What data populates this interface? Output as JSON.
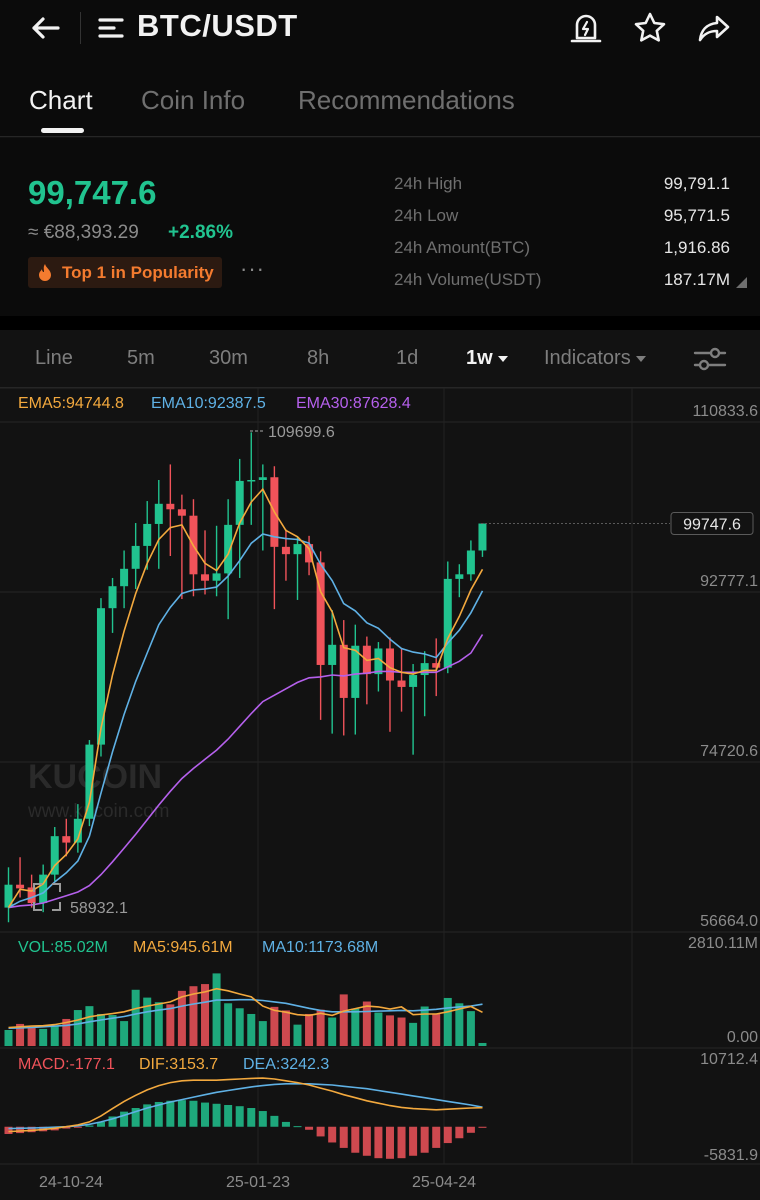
{
  "header": {
    "title": "BTC/USDT",
    "icons": [
      "back-arrow-icon",
      "menu-lines-icon",
      "price-alert-icon",
      "star-icon",
      "share-icon"
    ]
  },
  "tabs": [
    {
      "label": "Chart",
      "active": true
    },
    {
      "label": "Coin Info",
      "active": false
    },
    {
      "label": "Recommendations",
      "active": false
    }
  ],
  "summary": {
    "price": "99,747.6",
    "fiat": "≈ €88,393.29",
    "change": "+2.86%",
    "badge": "Top 1 in Popularity",
    "more": "···",
    "stats": [
      {
        "label": "24h High",
        "value": "99,791.1"
      },
      {
        "label": "24h Low",
        "value": "95,771.5"
      },
      {
        "label": "24h Amount(BTC)",
        "value": "1,916.86"
      },
      {
        "label": "24h Volume(USDT)",
        "value": "187.17M"
      }
    ]
  },
  "intervals": {
    "items": [
      "Line",
      "5m",
      "30m",
      "8h",
      "1d",
      "1w"
    ],
    "active": "1w",
    "indicators_label": "Indicators"
  },
  "colors": {
    "up": "#21c38f",
    "down": "#f0535a",
    "ema5": "#f3a93e",
    "ema10": "#5fb1e5",
    "ema30": "#b560ec"
  },
  "chart_data": [
    {
      "type": "candlestick",
      "x_labels": [
        "24-10-24",
        "25-01-23",
        "25-04-24"
      ],
      "legend": [
        "EMA5:94744.8",
        "EMA10:92387.5",
        "EMA30:87628.4"
      ],
      "y_axis_labels": [
        "110833.6",
        "92777.1",
        "74720.6",
        "56664.0"
      ],
      "ylim": [
        56664.0,
        110833.6
      ],
      "current_price": "99747.6",
      "max_label": "109699.6",
      "min_label": "58932.1",
      "watermark": {
        "brand": "KUCOIN",
        "url": "www.kucoin.com"
      },
      "candles": [
        {
          "o": 57800,
          "h": 62200,
          "l": 56200,
          "c": 60300
        },
        {
          "o": 60300,
          "h": 63300,
          "l": 58900,
          "c": 59900
        },
        {
          "o": 60000,
          "h": 61400,
          "l": 57800,
          "c": 58300
        },
        {
          "o": 58300,
          "h": 62500,
          "l": 57300,
          "c": 61400
        },
        {
          "o": 61400,
          "h": 66600,
          "l": 60700,
          "c": 65600
        },
        {
          "o": 65600,
          "h": 67500,
          "l": 63400,
          "c": 64900
        },
        {
          "o": 64900,
          "h": 69100,
          "l": 63800,
          "c": 67500
        },
        {
          "o": 67500,
          "h": 76100,
          "l": 66700,
          "c": 75600
        },
        {
          "o": 75600,
          "h": 91600,
          "l": 74300,
          "c": 90500
        },
        {
          "o": 90500,
          "h": 93800,
          "l": 87800,
          "c": 92900
        },
        {
          "o": 92900,
          "h": 96800,
          "l": 90500,
          "c": 94800
        },
        {
          "o": 94800,
          "h": 99800,
          "l": 92600,
          "c": 97300
        },
        {
          "o": 97300,
          "h": 102200,
          "l": 94700,
          "c": 99700
        },
        {
          "o": 99700,
          "h": 104500,
          "l": 94800,
          "c": 101900
        },
        {
          "o": 101900,
          "h": 106200,
          "l": 96200,
          "c": 101300
        },
        {
          "o": 101300,
          "h": 102900,
          "l": 91500,
          "c": 100600
        },
        {
          "o": 100600,
          "h": 102400,
          "l": 91800,
          "c": 94200
        },
        {
          "o": 94200,
          "h": 99000,
          "l": 92000,
          "c": 93500
        },
        {
          "o": 93500,
          "h": 99500,
          "l": 91800,
          "c": 94300
        },
        {
          "o": 94300,
          "h": 102400,
          "l": 89300,
          "c": 99600
        },
        {
          "o": 99600,
          "h": 106800,
          "l": 93800,
          "c": 104400
        },
        {
          "o": 104400,
          "h": 109700,
          "l": 99600,
          "c": 104500
        },
        {
          "o": 104500,
          "h": 106200,
          "l": 96800,
          "c": 104800
        },
        {
          "o": 104800,
          "h": 106000,
          "l": 90400,
          "c": 97200
        },
        {
          "o": 97200,
          "h": 99100,
          "l": 93500,
          "c": 96400
        },
        {
          "o": 96400,
          "h": 98300,
          "l": 91400,
          "c": 97500
        },
        {
          "o": 97500,
          "h": 98400,
          "l": 94100,
          "c": 95500
        },
        {
          "o": 95500,
          "h": 96700,
          "l": 78300,
          "c": 84300
        },
        {
          "o": 84300,
          "h": 90300,
          "l": 76800,
          "c": 86500
        },
        {
          "o": 86500,
          "h": 89200,
          "l": 76600,
          "c": 80700
        },
        {
          "o": 80700,
          "h": 88700,
          "l": 76700,
          "c": 86400
        },
        {
          "o": 86400,
          "h": 87400,
          "l": 80000,
          "c": 83300
        },
        {
          "o": 83300,
          "h": 86800,
          "l": 81400,
          "c": 86100
        },
        {
          "o": 86100,
          "h": 87300,
          "l": 77000,
          "c": 82600
        },
        {
          "o": 82600,
          "h": 86100,
          "l": 79200,
          "c": 81900
        },
        {
          "o": 81900,
          "h": 84400,
          "l": 74500,
          "c": 83200
        },
        {
          "o": 83200,
          "h": 85800,
          "l": 78700,
          "c": 84500
        },
        {
          "o": 84500,
          "h": 87200,
          "l": 80900,
          "c": 84000
        },
        {
          "o": 84000,
          "h": 95600,
          "l": 83400,
          "c": 93700
        },
        {
          "o": 93700,
          "h": 95300,
          "l": 91700,
          "c": 94200
        },
        {
          "o": 94200,
          "h": 97900,
          "l": 93500,
          "c": 96800
        },
        {
          "o": 96800,
          "h": 99800,
          "l": 96100,
          "c": 99747.6
        }
      ],
      "ema5": [
        57800,
        59800,
        59600,
        60400,
        62400,
        63600,
        65300,
        69300,
        77400,
        83200,
        88000,
        92100,
        95400,
        98000,
        99300,
        99600,
        97300,
        95400,
        94600,
        96400,
        99800,
        102100,
        103500,
        101000,
        99000,
        98300,
        97000,
        92300,
        90100,
        86200,
        85900,
        84800,
        85000,
        84000,
        83500,
        83300,
        83700,
        83700,
        87200,
        89600,
        92500,
        94744.8
      ],
      "ema10": [
        57800,
        58500,
        58900,
        59400,
        60600,
        61600,
        62900,
        65600,
        70300,
        74800,
        78900,
        82500,
        85600,
        88700,
        90600,
        92100,
        92500,
        92600,
        92800,
        94000,
        95700,
        97600,
        98600,
        98300,
        98100,
        98000,
        97600,
        95300,
        93500,
        91000,
        90200,
        88900,
        88300,
        87100,
        86100,
        85700,
        85500,
        85100,
        86700,
        88100,
        90000,
        92387.5
      ],
      "ema30": [
        57800,
        58000,
        58100,
        58300,
        58700,
        59100,
        59500,
        60200,
        61400,
        62800,
        64300,
        65800,
        67400,
        69000,
        70500,
        71900,
        73000,
        74000,
        75000,
        76200,
        77600,
        79000,
        80300,
        81000,
        81700,
        82400,
        82900,
        83000,
        83200,
        83100,
        83300,
        83400,
        83600,
        83600,
        83500,
        83500,
        83500,
        83500,
        84100,
        84700,
        85600,
        87628.4
      ]
    },
    {
      "type": "bar",
      "legend": [
        "VOL:85.02M",
        "MA5:945.61M",
        "MA10:1173.68M"
      ],
      "y_axis_labels": [
        "2810.11M",
        "0.00"
      ],
      "ylim": [
        0,
        2810.11
      ],
      "volumes": [
        450,
        620,
        520,
        480,
        560,
        760,
        1010,
        1120,
        900,
        870,
        700,
        1580,
        1360,
        1230,
        1170,
        1550,
        1680,
        1740,
        2040,
        1200,
        1060,
        900,
        700,
        1100,
        1000,
        600,
        900,
        1020,
        800,
        1450,
        1050,
        1250,
        940,
        860,
        800,
        650,
        1110,
        900,
        1350,
        1200,
        980,
        85.02
      ],
      "ma5": [
        520,
        540,
        560,
        570,
        600,
        660,
        730,
        820,
        870,
        910,
        960,
        1050,
        1120,
        1180,
        1240,
        1380,
        1460,
        1520,
        1610,
        1550,
        1460,
        1380,
        1120,
        1000,
        950,
        880,
        860,
        920,
        860,
        980,
        1050,
        1120,
        1100,
        1040,
        1100,
        880,
        900,
        900,
        960,
        1040,
        1110,
        945.61
      ],
      "ma10": [
        500,
        510,
        520,
        540,
        560,
        580,
        620,
        680,
        730,
        780,
        830,
        900,
        960,
        1010,
        1050,
        1120,
        1180,
        1230,
        1290,
        1290,
        1300,
        1300,
        1280,
        1240,
        1200,
        1130,
        1060,
        1000,
        960,
        960,
        960,
        970,
        980,
        990,
        1000,
        990,
        1010,
        1030,
        1070,
        1100,
        1120,
        1173.68
      ]
    },
    {
      "type": "bar",
      "legend": [
        "MACD:-177.1",
        "DIF:3153.7",
        "DEA:3242.3"
      ],
      "y_axis_labels": [
        "10712.4",
        "-5831.9"
      ],
      "ylim": [
        -5831.9,
        10712.4
      ],
      "macd": [
        -1200,
        -1050,
        -900,
        -750,
        -600,
        -300,
        -100,
        200,
        800,
        1700,
        2500,
        3100,
        3700,
        4100,
        4300,
        4400,
        4300,
        4000,
        3800,
        3600,
        3400,
        3100,
        2600,
        1800,
        800,
        100,
        -500,
        -1600,
        -2600,
        -3500,
        -4300,
        -4800,
        -5200,
        -5300,
        -5200,
        -4800,
        -4300,
        -3500,
        -2700,
        -1900,
        -1000,
        -177.1
      ],
      "dif": [
        -800,
        -700,
        -600,
        -450,
        -250,
        0,
        300,
        800,
        1800,
        3000,
        4200,
        5200,
        6100,
        6800,
        7300,
        7600,
        7700,
        7700,
        7700,
        7800,
        7900,
        8000,
        8050,
        7900,
        7600,
        7300,
        6900,
        6400,
        5900,
        5300,
        4800,
        4300,
        3900,
        3500,
        3200,
        3000,
        2900,
        2800,
        2900,
        3000,
        3100,
        3153.7
      ],
      "dea": [
        -300,
        -250,
        -200,
        -150,
        -80,
        0,
        150,
        400,
        800,
        1300,
        1900,
        2500,
        3100,
        3600,
        4100,
        4500,
        4900,
        5300,
        5700,
        6000,
        6300,
        6600,
        6800,
        7000,
        7100,
        7100,
        7100,
        7000,
        6900,
        6700,
        6500,
        6300,
        6000,
        5700,
        5400,
        5100,
        4800,
        4500,
        4200,
        3900,
        3600,
        3242.3
      ]
    }
  ]
}
